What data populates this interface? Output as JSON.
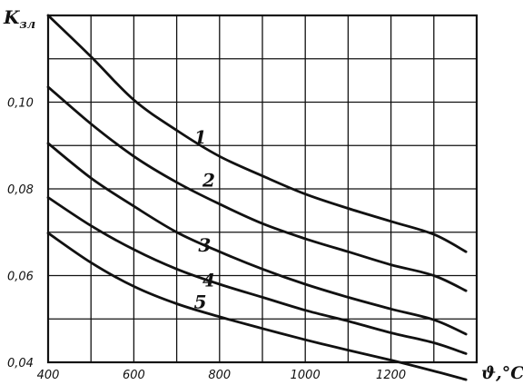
{
  "chart_data": {
    "type": "line",
    "title": "",
    "xlabel": "ϑ,°C",
    "ylabel": "K_зл",
    "xlim": [
      400,
      1400
    ],
    "ylim": [
      0.04,
      0.12
    ],
    "grid": true,
    "x_ticks": [
      400,
      600,
      800,
      1000,
      1200
    ],
    "x_tick_labels": [
      "400",
      "600",
      "800",
      "1000",
      "1200"
    ],
    "y_ticks": [
      0.04,
      0.06,
      0.08,
      0.1
    ],
    "y_tick_labels": [
      "0,04",
      "0,06",
      "0,08",
      "0,10"
    ],
    "series": [
      {
        "name": "1",
        "x": [
          400,
          500,
          600,
          700,
          800,
          900,
          1000,
          1100,
          1200,
          1300,
          1375
        ],
        "y": [
          0.12,
          0.1105,
          0.1005,
          0.0935,
          0.0875,
          0.083,
          0.0788,
          0.0755,
          0.0725,
          0.0695,
          0.0655
        ]
      },
      {
        "name": "2",
        "x": [
          400,
          500,
          600,
          700,
          800,
          900,
          1000,
          1100,
          1200,
          1300,
          1375
        ],
        "y": [
          0.1035,
          0.095,
          0.0875,
          0.0815,
          0.0765,
          0.072,
          0.0685,
          0.0655,
          0.0625,
          0.06,
          0.0565
        ]
      },
      {
        "name": "3",
        "x": [
          400,
          500,
          600,
          700,
          800,
          900,
          1000,
          1100,
          1200,
          1300,
          1375
        ],
        "y": [
          0.0905,
          0.0825,
          0.076,
          0.07,
          0.0655,
          0.0615,
          0.058,
          0.055,
          0.0523,
          0.0498,
          0.0465
        ]
      },
      {
        "name": "4",
        "x": [
          400,
          500,
          600,
          700,
          800,
          900,
          1000,
          1100,
          1200,
          1300,
          1375
        ],
        "y": [
          0.078,
          0.0715,
          0.066,
          0.0615,
          0.058,
          0.055,
          0.052,
          0.0495,
          0.0468,
          0.0445,
          0.042
        ]
      },
      {
        "name": "5",
        "x": [
          400,
          500,
          600,
          700,
          800,
          900,
          1000,
          1100,
          1200,
          1300,
          1375
        ],
        "y": [
          0.0698,
          0.063,
          0.0575,
          0.0535,
          0.0505,
          0.0478,
          0.0452,
          0.0428,
          0.0405,
          0.038,
          0.036
        ]
      }
    ],
    "curve_labels": [
      {
        "text": "1",
        "x": 755,
        "y": 0.0905
      },
      {
        "text": "2",
        "x": 775,
        "y": 0.0805
      },
      {
        "text": "3",
        "x": 765,
        "y": 0.0655
      },
      {
        "text": "4",
        "x": 775,
        "y": 0.0575
      },
      {
        "text": "5",
        "x": 755,
        "y": 0.0525
      }
    ]
  }
}
